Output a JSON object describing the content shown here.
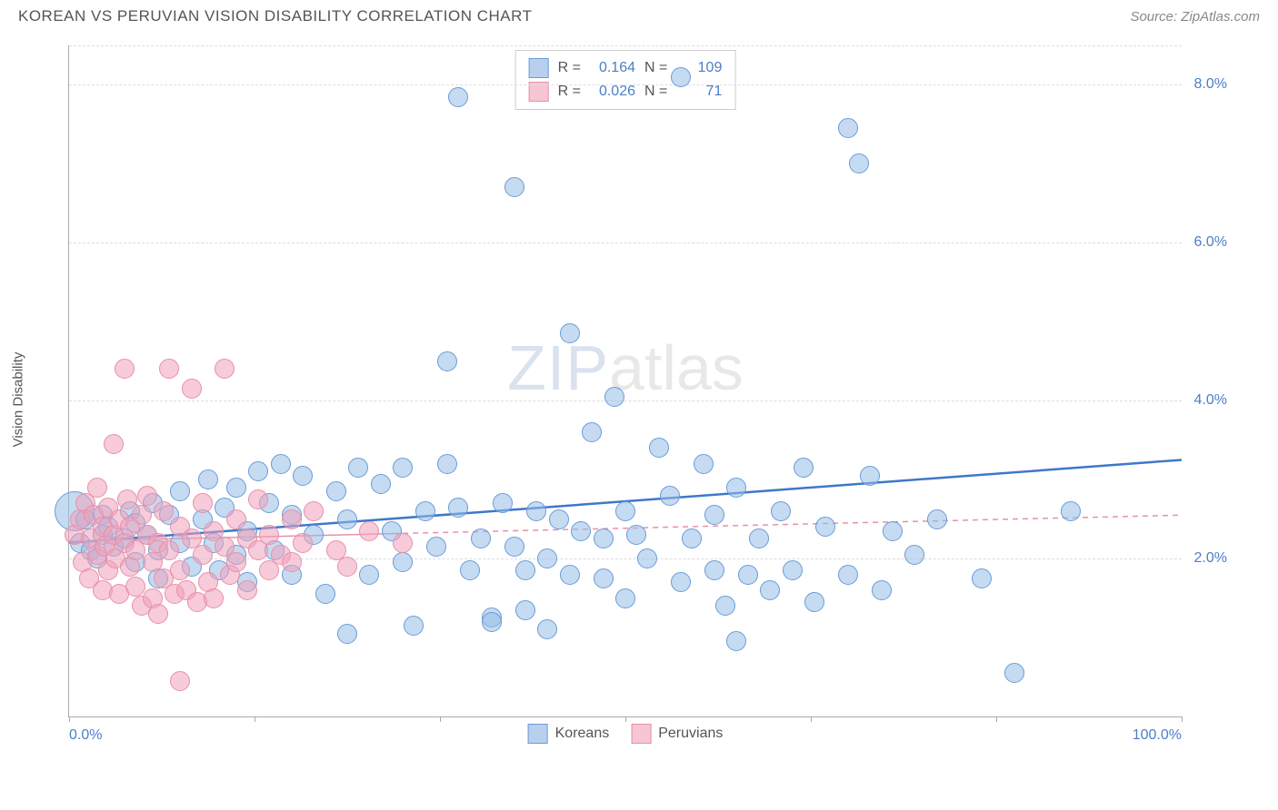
{
  "header": {
    "title": "KOREAN VS PERUVIAN VISION DISABILITY CORRELATION CHART",
    "source": "Source: ZipAtlas.com"
  },
  "watermark": {
    "zip": "ZIP",
    "atlas": "atlas"
  },
  "chart": {
    "type": "scatter",
    "y_axis": {
      "label": "Vision Disability",
      "min": 0.0,
      "max": 8.5,
      "ticks": [
        2.0,
        4.0,
        6.0,
        8.0
      ],
      "tick_labels": [
        "2.0%",
        "4.0%",
        "6.0%",
        "8.0%"
      ],
      "tick_color": "#4a7fc9",
      "label_color": "#555555",
      "label_fontsize": 15,
      "tick_fontsize": 16
    },
    "x_axis": {
      "min": 0.0,
      "max": 100.0,
      "ticks": [
        0,
        16.67,
        33.33,
        50.0,
        66.67,
        83.33,
        100.0
      ],
      "left_label": "0.0%",
      "right_label": "100.0%",
      "label_color": "#4a7fc9",
      "label_fontsize": 16
    },
    "grid_color": "#dddddd",
    "axis_color": "#aaaaaa",
    "background_color": "#ffffff",
    "stats_legend": {
      "rows": [
        {
          "swatch_fill": "#b8d0ee",
          "swatch_border": "#6a9bd8",
          "r_label": "R =",
          "r": "0.164",
          "n_label": "N =",
          "n": "109"
        },
        {
          "swatch_fill": "#f6c6d2",
          "swatch_border": "#e890a8",
          "r_label": "R =",
          "r": "0.026",
          "n_label": "N =",
          "n": "71"
        }
      ]
    },
    "bottom_legend": {
      "items": [
        {
          "swatch_fill": "#b8d0ee",
          "swatch_border": "#6a9bd8",
          "label": "Koreans"
        },
        {
          "swatch_fill": "#f6c6d2",
          "swatch_border": "#e890a8",
          "label": "Peruvians"
        }
      ]
    },
    "series": [
      {
        "name": "Koreans",
        "marker_fill": "rgba(150,190,230,0.55)",
        "marker_border": "#6a9bd8",
        "marker_radius": 11,
        "trend": {
          "color": "#3e78c9",
          "width": 2.5,
          "dash": "none",
          "y_at_xmin": 2.2,
          "y_at_xmax": 3.25,
          "x_start": 0,
          "x_end": 100,
          "extrapolate": false
        },
        "points": [
          {
            "x": 0.5,
            "y": 2.6,
            "r": 22
          },
          {
            "x": 1,
            "y": 2.2
          },
          {
            "x": 1.5,
            "y": 2.5
          },
          {
            "x": 2,
            "y": 2.1
          },
          {
            "x": 2.5,
            "y": 2.0
          },
          {
            "x": 3,
            "y": 2.3
          },
          {
            "x": 3,
            "y": 2.55
          },
          {
            "x": 3.5,
            "y": 2.4
          },
          {
            "x": 4,
            "y": 2.15
          },
          {
            "x": 5,
            "y": 2.25
          },
          {
            "x": 5.5,
            "y": 2.6
          },
          {
            "x": 6,
            "y": 1.95
          },
          {
            "x": 6,
            "y": 2.45
          },
          {
            "x": 7,
            "y": 2.3
          },
          {
            "x": 7.5,
            "y": 2.7
          },
          {
            "x": 8,
            "y": 2.1
          },
          {
            "x": 8,
            "y": 1.75
          },
          {
            "x": 9,
            "y": 2.55
          },
          {
            "x": 10,
            "y": 2.2
          },
          {
            "x": 10,
            "y": 2.85
          },
          {
            "x": 11,
            "y": 1.9
          },
          {
            "x": 12,
            "y": 2.5
          },
          {
            "x": 12.5,
            "y": 3.0
          },
          {
            "x": 13,
            "y": 2.2
          },
          {
            "x": 13.5,
            "y": 1.85
          },
          {
            "x": 14,
            "y": 2.65
          },
          {
            "x": 15,
            "y": 2.05
          },
          {
            "x": 15,
            "y": 2.9
          },
          {
            "x": 16,
            "y": 2.35
          },
          {
            "x": 16,
            "y": 1.7
          },
          {
            "x": 17,
            "y": 3.1
          },
          {
            "x": 18,
            "y": 2.7
          },
          {
            "x": 18.5,
            "y": 2.1
          },
          {
            "x": 19,
            "y": 3.2
          },
          {
            "x": 20,
            "y": 1.8
          },
          {
            "x": 20,
            "y": 2.55
          },
          {
            "x": 21,
            "y": 3.05
          },
          {
            "x": 22,
            "y": 2.3
          },
          {
            "x": 23,
            "y": 1.55
          },
          {
            "x": 24,
            "y": 2.85
          },
          {
            "x": 25,
            "y": 1.05
          },
          {
            "x": 25,
            "y": 2.5
          },
          {
            "x": 26,
            "y": 3.15
          },
          {
            "x": 27,
            "y": 1.8
          },
          {
            "x": 28,
            "y": 2.95
          },
          {
            "x": 29,
            "y": 2.35
          },
          {
            "x": 30,
            "y": 1.95
          },
          {
            "x": 30,
            "y": 3.15
          },
          {
            "x": 31,
            "y": 1.15
          },
          {
            "x": 32,
            "y": 2.6
          },
          {
            "x": 33,
            "y": 2.15
          },
          {
            "x": 34,
            "y": 4.5
          },
          {
            "x": 34,
            "y": 3.2
          },
          {
            "x": 35,
            "y": 7.85
          },
          {
            "x": 35,
            "y": 2.65
          },
          {
            "x": 36,
            "y": 1.85
          },
          {
            "x": 37,
            "y": 2.25
          },
          {
            "x": 38,
            "y": 1.25
          },
          {
            "x": 38,
            "y": 1.2
          },
          {
            "x": 39,
            "y": 2.7
          },
          {
            "x": 40,
            "y": 2.15
          },
          {
            "x": 40,
            "y": 6.7
          },
          {
            "x": 41,
            "y": 1.35
          },
          {
            "x": 41,
            "y": 1.85
          },
          {
            "x": 42,
            "y": 2.6
          },
          {
            "x": 43,
            "y": 2.0
          },
          {
            "x": 43,
            "y": 1.1
          },
          {
            "x": 44,
            "y": 2.5
          },
          {
            "x": 45,
            "y": 1.8
          },
          {
            "x": 45,
            "y": 4.85
          },
          {
            "x": 46,
            "y": 2.35
          },
          {
            "x": 47,
            "y": 3.6
          },
          {
            "x": 48,
            "y": 1.75
          },
          {
            "x": 48,
            "y": 2.25
          },
          {
            "x": 49,
            "y": 4.05
          },
          {
            "x": 50,
            "y": 2.6
          },
          {
            "x": 50,
            "y": 1.5
          },
          {
            "x": 51,
            "y": 2.3
          },
          {
            "x": 52,
            "y": 2.0
          },
          {
            "x": 53,
            "y": 3.4
          },
          {
            "x": 54,
            "y": 2.8
          },
          {
            "x": 55,
            "y": 8.1
          },
          {
            "x": 55,
            "y": 1.7
          },
          {
            "x": 56,
            "y": 2.25
          },
          {
            "x": 57,
            "y": 3.2
          },
          {
            "x": 58,
            "y": 1.85
          },
          {
            "x": 58,
            "y": 2.55
          },
          {
            "x": 59,
            "y": 1.4
          },
          {
            "x": 60,
            "y": 0.95
          },
          {
            "x": 60,
            "y": 2.9
          },
          {
            "x": 61,
            "y": 1.8
          },
          {
            "x": 62,
            "y": 2.25
          },
          {
            "x": 63,
            "y": 1.6
          },
          {
            "x": 64,
            "y": 2.6
          },
          {
            "x": 65,
            "y": 1.85
          },
          {
            "x": 66,
            "y": 3.15
          },
          {
            "x": 67,
            "y": 1.45
          },
          {
            "x": 68,
            "y": 2.4
          },
          {
            "x": 70,
            "y": 7.45
          },
          {
            "x": 70,
            "y": 1.8
          },
          {
            "x": 71,
            "y": 7.0
          },
          {
            "x": 72,
            "y": 3.05
          },
          {
            "x": 73,
            "y": 1.6
          },
          {
            "x": 74,
            "y": 2.35
          },
          {
            "x": 76,
            "y": 2.05
          },
          {
            "x": 78,
            "y": 2.5
          },
          {
            "x": 82,
            "y": 1.75
          },
          {
            "x": 85,
            "y": 0.55
          },
          {
            "x": 90,
            "y": 2.6
          }
        ]
      },
      {
        "name": "Peruvians",
        "marker_fill": "rgba(240,160,185,0.55)",
        "marker_border": "#e890a8",
        "marker_radius": 11,
        "trend": {
          "color": "#e890a8",
          "width": 1.5,
          "dash": "none",
          "y_at_xmin": 2.22,
          "y_at_xmax": 2.55,
          "x_start": 0,
          "x_end": 30,
          "extrapolate": true,
          "extrapolate_dash": "6,5"
        },
        "points": [
          {
            "x": 0.5,
            "y": 2.3
          },
          {
            "x": 1,
            "y": 2.5
          },
          {
            "x": 1.2,
            "y": 1.95
          },
          {
            "x": 1.5,
            "y": 2.7
          },
          {
            "x": 1.8,
            "y": 1.75
          },
          {
            "x": 2,
            "y": 2.25
          },
          {
            "x": 2.2,
            "y": 2.55
          },
          {
            "x": 2.5,
            "y": 2.05
          },
          {
            "x": 2.5,
            "y": 2.9
          },
          {
            "x": 3,
            "y": 1.6
          },
          {
            "x": 3,
            "y": 2.4
          },
          {
            "x": 3.2,
            "y": 2.15
          },
          {
            "x": 3.5,
            "y": 2.65
          },
          {
            "x": 3.5,
            "y": 1.85
          },
          {
            "x": 4,
            "y": 2.3
          },
          {
            "x": 4,
            "y": 3.45
          },
          {
            "x": 4.2,
            "y": 2.0
          },
          {
            "x": 4.5,
            "y": 2.5
          },
          {
            "x": 4.5,
            "y": 1.55
          },
          {
            "x": 5,
            "y": 4.4
          },
          {
            "x": 5,
            "y": 2.2
          },
          {
            "x": 5.2,
            "y": 2.75
          },
          {
            "x": 5.5,
            "y": 1.9
          },
          {
            "x": 5.5,
            "y": 2.4
          },
          {
            "x": 6,
            "y": 2.1
          },
          {
            "x": 6,
            "y": 1.65
          },
          {
            "x": 6.5,
            "y": 2.55
          },
          {
            "x": 6.5,
            "y": 1.4
          },
          {
            "x": 7,
            "y": 2.3
          },
          {
            "x": 7,
            "y": 2.8
          },
          {
            "x": 7.5,
            "y": 1.95
          },
          {
            "x": 7.5,
            "y": 1.5
          },
          {
            "x": 8,
            "y": 2.2
          },
          {
            "x": 8,
            "y": 1.3
          },
          {
            "x": 8.5,
            "y": 2.6
          },
          {
            "x": 8.5,
            "y": 1.75
          },
          {
            "x": 9,
            "y": 4.4
          },
          {
            "x": 9,
            "y": 2.1
          },
          {
            "x": 9.5,
            "y": 1.55
          },
          {
            "x": 10,
            "y": 2.4
          },
          {
            "x": 10,
            "y": 1.85
          },
          {
            "x": 10,
            "y": 0.45
          },
          {
            "x": 10.5,
            "y": 1.6
          },
          {
            "x": 11,
            "y": 2.25
          },
          {
            "x": 11,
            "y": 4.15
          },
          {
            "x": 11.5,
            "y": 1.45
          },
          {
            "x": 12,
            "y": 2.05
          },
          {
            "x": 12,
            "y": 2.7
          },
          {
            "x": 12.5,
            "y": 1.7
          },
          {
            "x": 13,
            "y": 2.35
          },
          {
            "x": 13,
            "y": 1.5
          },
          {
            "x": 14,
            "y": 4.4
          },
          {
            "x": 14,
            "y": 2.15
          },
          {
            "x": 14.5,
            "y": 1.8
          },
          {
            "x": 15,
            "y": 2.5
          },
          {
            "x": 15,
            "y": 1.95
          },
          {
            "x": 16,
            "y": 2.25
          },
          {
            "x": 16,
            "y": 1.6
          },
          {
            "x": 17,
            "y": 2.1
          },
          {
            "x": 17,
            "y": 2.75
          },
          {
            "x": 18,
            "y": 1.85
          },
          {
            "x": 18,
            "y": 2.3
          },
          {
            "x": 19,
            "y": 2.05
          },
          {
            "x": 20,
            "y": 2.5
          },
          {
            "x": 20,
            "y": 1.95
          },
          {
            "x": 21,
            "y": 2.2
          },
          {
            "x": 22,
            "y": 2.6
          },
          {
            "x": 24,
            "y": 2.1
          },
          {
            "x": 25,
            "y": 1.9
          },
          {
            "x": 27,
            "y": 2.35
          },
          {
            "x": 30,
            "y": 2.2
          }
        ]
      }
    ]
  }
}
